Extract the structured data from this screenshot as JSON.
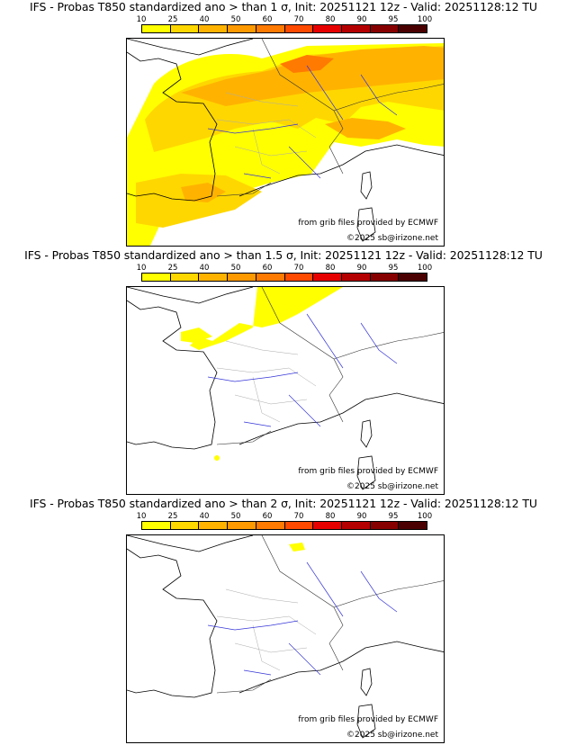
{
  "scale": {
    "ticks": [
      "10",
      "25",
      "40",
      "50",
      "60",
      "70",
      "80",
      "90",
      "95",
      "100"
    ],
    "colors": [
      "#ffff00",
      "#ffd700",
      "#ffb300",
      "#ff9900",
      "#ff7a00",
      "#ff4a00",
      "#e60000",
      "#b40000",
      "#860000",
      "#4a0000"
    ]
  },
  "panels": [
    {
      "title": "IFS - Probas T850  standardized ano > than 1 σ, Init: 20251121 12z - Valid: 20251128:12 TU",
      "source": "from grib files provided by ECMWF",
      "copyright": "©2025 sb@irizone.net"
    },
    {
      "title": "IFS - Probas T850  standardized ano > than 1.5 σ, Init: 20251121 12z - Valid: 20251128:12 TU",
      "source": "from grib files provided by ECMWF",
      "copyright": "©2025 sb@irizone.net"
    },
    {
      "title": "IFS - Probas T850  standardized ano > than 2 σ, Init: 20251121 12z - Valid: 20251128:12 TU",
      "source": "from grib files provided by ECMWF",
      "copyright": "©2025 sb@irizone.net"
    }
  ]
}
